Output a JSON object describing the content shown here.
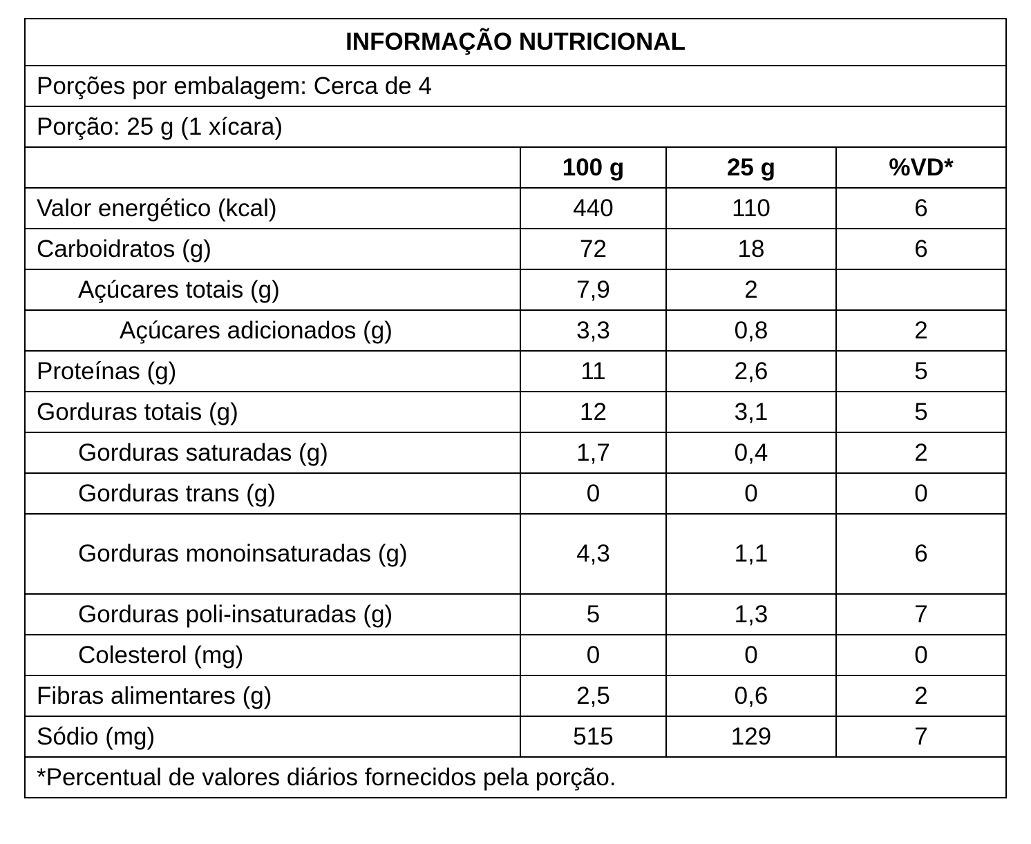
{
  "title": "INFORMAÇÃO NUTRICIONAL",
  "servings_per_package": "Porções por embalagem: Cerca de 4",
  "serving_size": "Porção: 25 g (1 xícara)",
  "columns": [
    "100 g",
    "25 g",
    "%VD*"
  ],
  "rows": [
    {
      "label": "Valor energético (kcal)",
      "values": [
        "440",
        "110",
        "6"
      ]
    },
    {
      "label": "Carboidratos (g)",
      "values": [
        "72",
        "18",
        "6"
      ]
    },
    {
      "label": "Açúcares totais (g)",
      "values": [
        "7,9",
        "2",
        null
      ]
    },
    {
      "label": "Açúcares adicionados (g)",
      "values": [
        "3,3",
        "0,8",
        "2"
      ]
    },
    {
      "label": "Proteínas (g)",
      "values": [
        "11",
        "2,6",
        "5"
      ]
    },
    {
      "label": "Gorduras totais (g)",
      "values": [
        "12",
        "3,1",
        "5"
      ]
    },
    {
      "label": "Gorduras saturadas (g)",
      "values": [
        "1,7",
        "0,4",
        "2"
      ]
    },
    {
      "label": "Gorduras trans (g)",
      "values": [
        "0",
        "0",
        "0"
      ]
    },
    {
      "label": "Gorduras monoinsaturadas (g)",
      "values": [
        "4,3",
        "1,1",
        "6"
      ]
    },
    {
      "label": "Gorduras poli-insaturadas (g)",
      "values": [
        "5",
        "1,3",
        "7"
      ]
    },
    {
      "label": "Colesterol (mg)",
      "values": [
        "0",
        "0",
        "0"
      ]
    },
    {
      "label": "Fibras alimentares (g)",
      "values": [
        "2,5",
        "0,6",
        "2"
      ]
    },
    {
      "label": "Sódio (mg)",
      "values": [
        "515",
        "129",
        "7"
      ]
    }
  ],
  "footnote": "*Percentual de valores diários fornecidos pela porção."
}
